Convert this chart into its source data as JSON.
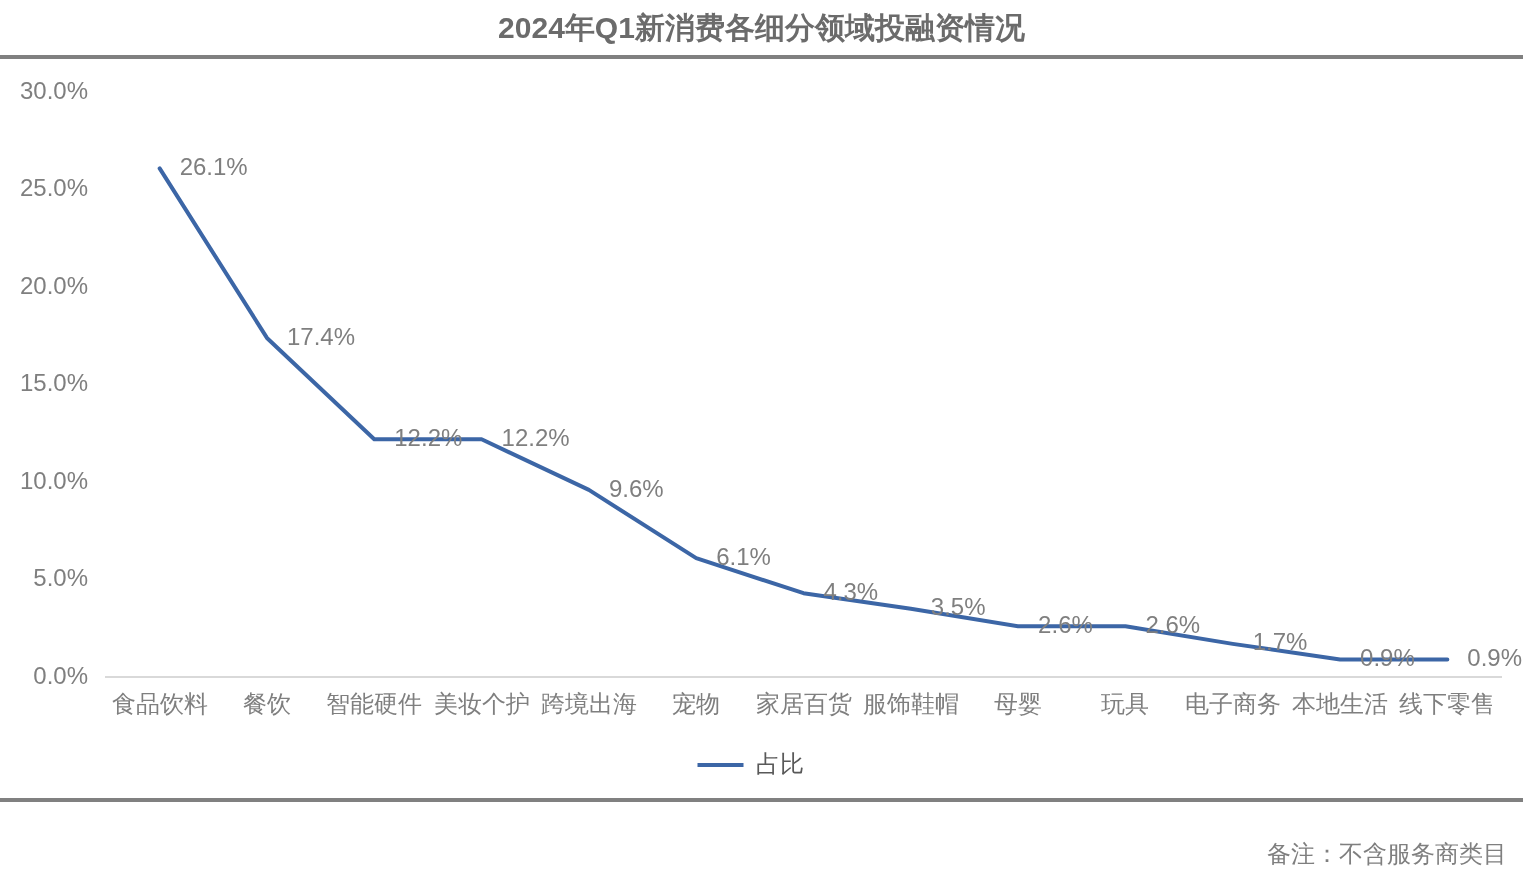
{
  "chart_data": {
    "type": "line",
    "title": "2024年Q1新消费各细分领域投融资情况",
    "categories": [
      "食品饮料",
      "餐饮",
      "智能硬件",
      "美妆个护",
      "跨境出海",
      "宠物",
      "家居百货",
      "服饰鞋帽",
      "母婴",
      "玩具",
      "电子商务",
      "本地生活",
      "线下零售"
    ],
    "series": [
      {
        "name": "占比",
        "color": "#3c66a6",
        "values": [
          26.1,
          17.4,
          12.2,
          12.2,
          9.6,
          6.1,
          4.3,
          3.5,
          2.6,
          2.6,
          1.7,
          0.9,
          0.9
        ],
        "value_labels": [
          "26.1%",
          "17.4%",
          "12.2%",
          "12.2%",
          "9.6%",
          "6.1%",
          "4.3%",
          "3.5%",
          "2.6%",
          "2.6%",
          "1.7%",
          "0.9%",
          "0.9%"
        ]
      }
    ],
    "ylim": [
      0,
      30
    ],
    "yticks": [
      {
        "value": 0,
        "label": "0.0%"
      },
      {
        "value": 5,
        "label": "5.0%"
      },
      {
        "value": 10,
        "label": "10.0%"
      },
      {
        "value": 15,
        "label": "15.0%"
      },
      {
        "value": 20,
        "label": "20.0%"
      },
      {
        "value": 25,
        "label": "25.0%"
      },
      {
        "value": 30,
        "label": "30.0%"
      }
    ],
    "grid": false,
    "legend": "bottom",
    "marker": "none",
    "line_style": "solid",
    "annotations": [
      "备注：不含服务商类目"
    ]
  }
}
